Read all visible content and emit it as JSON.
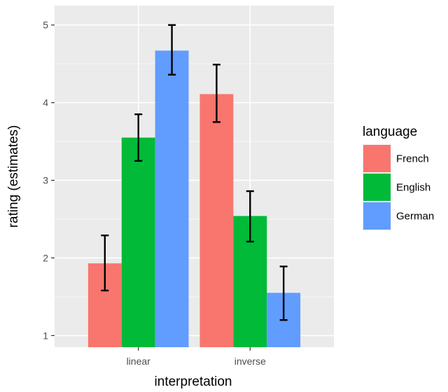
{
  "chart_data": {
    "type": "bar",
    "xlabel": "interpretation",
    "ylabel": "rating (estimates)",
    "categories": [
      "linear",
      "inverse"
    ],
    "ylim": [
      0.85,
      5.25
    ],
    "yticks": [
      1,
      2,
      3,
      4,
      5
    ],
    "ytick_labels": [
      "1",
      "2",
      "3",
      "4",
      "5"
    ],
    "grid": true,
    "legend": {
      "title": "language",
      "position": "right"
    },
    "series": [
      {
        "name": "French",
        "color": "#F8766D",
        "values": [
          1.93,
          4.11
        ],
        "error_low": [
          1.58,
          3.75
        ],
        "error_high": [
          2.29,
          4.49
        ]
      },
      {
        "name": "English",
        "color": "#00BA38",
        "values": [
          3.55,
          2.54
        ],
        "error_low": [
          3.25,
          2.21
        ],
        "error_high": [
          3.85,
          2.86
        ]
      },
      {
        "name": "German",
        "color": "#619CFF",
        "values": [
          4.67,
          1.55
        ],
        "error_low": [
          4.36,
          1.2
        ],
        "error_high": [
          5.0,
          1.89
        ]
      }
    ]
  }
}
